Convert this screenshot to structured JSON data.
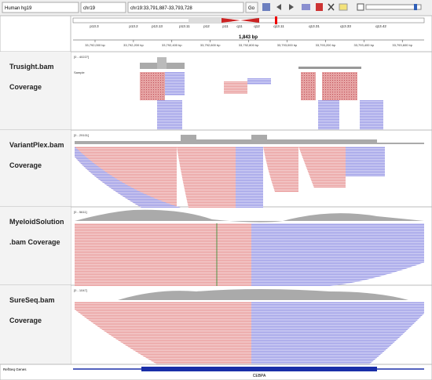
{
  "toolbar": {
    "genome": "Human hg19",
    "chromosome": "chr19",
    "locus": "chr19:33,791,887-33,793,728",
    "go": "Go"
  },
  "ideogram": {
    "bands": [
      "p13.3",
      "p13.2",
      "p13.13",
      "p13.11",
      "p12",
      "p11",
      "q11",
      "q12",
      "q13.11",
      "q13.31",
      "q13.33",
      "q13.42"
    ]
  },
  "ruler": {
    "span": "1,843 bp",
    "ticks": [
      "33,792,000 bp",
      "33,792,200 bp",
      "33,792,400 bp",
      "33,792,600 bp",
      "33,792,800 bp",
      "33,793,000 bp",
      "33,793,200 bp",
      "33,793,400 bp",
      "33,793,600 bp"
    ]
  },
  "tracks": [
    {
      "name": "Trusight.bam",
      "subtitle": "Coverage",
      "range": "[0 - 40227]",
      "sample": "Sample"
    },
    {
      "name": "VariantPlex.bam",
      "subtitle": "Coverage",
      "range": "[0 - 29101]"
    },
    {
      "name": "MyeloidSolution",
      "subtitle": ".bam Coverage",
      "range": "[0 - 5611]"
    },
    {
      "name": "SureSeq.bam",
      "subtitle": "Coverage",
      "range": "[0 - 1047]"
    }
  ],
  "genes": {
    "track": "RefSeq Genes",
    "gene": "CEBPA"
  }
}
